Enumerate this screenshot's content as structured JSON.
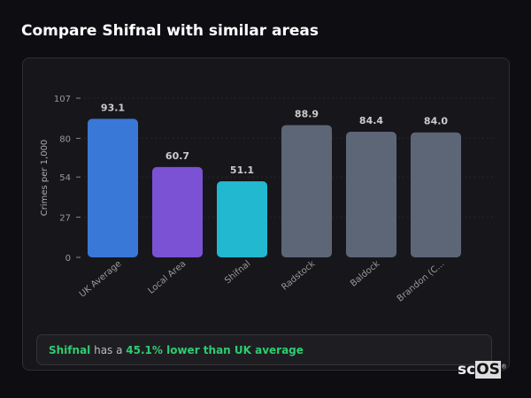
{
  "title": "Compare Shifnal with similar areas",
  "chart_data": {
    "type": "bar",
    "categories": [
      "UK Average",
      "Local Area",
      "Shifnal",
      "Radstock",
      "Baldock",
      "Brandon (C..."
    ],
    "values": [
      93.1,
      60.7,
      51.1,
      88.9,
      84.4,
      84.0
    ],
    "value_labels": [
      "93.1",
      "60.7",
      "51.1",
      "88.9",
      "84.4",
      "84.0"
    ],
    "colors": [
      "#3a78d8",
      "#7b52d4",
      "#22b8d0",
      "#5c6677",
      "#5c6677",
      "#5c6677"
    ],
    "ylabel": "Crimes per 1,000",
    "yticks": [
      0,
      27,
      54,
      80,
      107
    ],
    "ylim": [
      0,
      107
    ],
    "grid": true
  },
  "insight": {
    "area": "Shifnal",
    "middle": " has a ",
    "highlight": "45.1% lower than UK average"
  },
  "logo": {
    "sc": "sc",
    "os": "OS",
    "mark": "®"
  }
}
